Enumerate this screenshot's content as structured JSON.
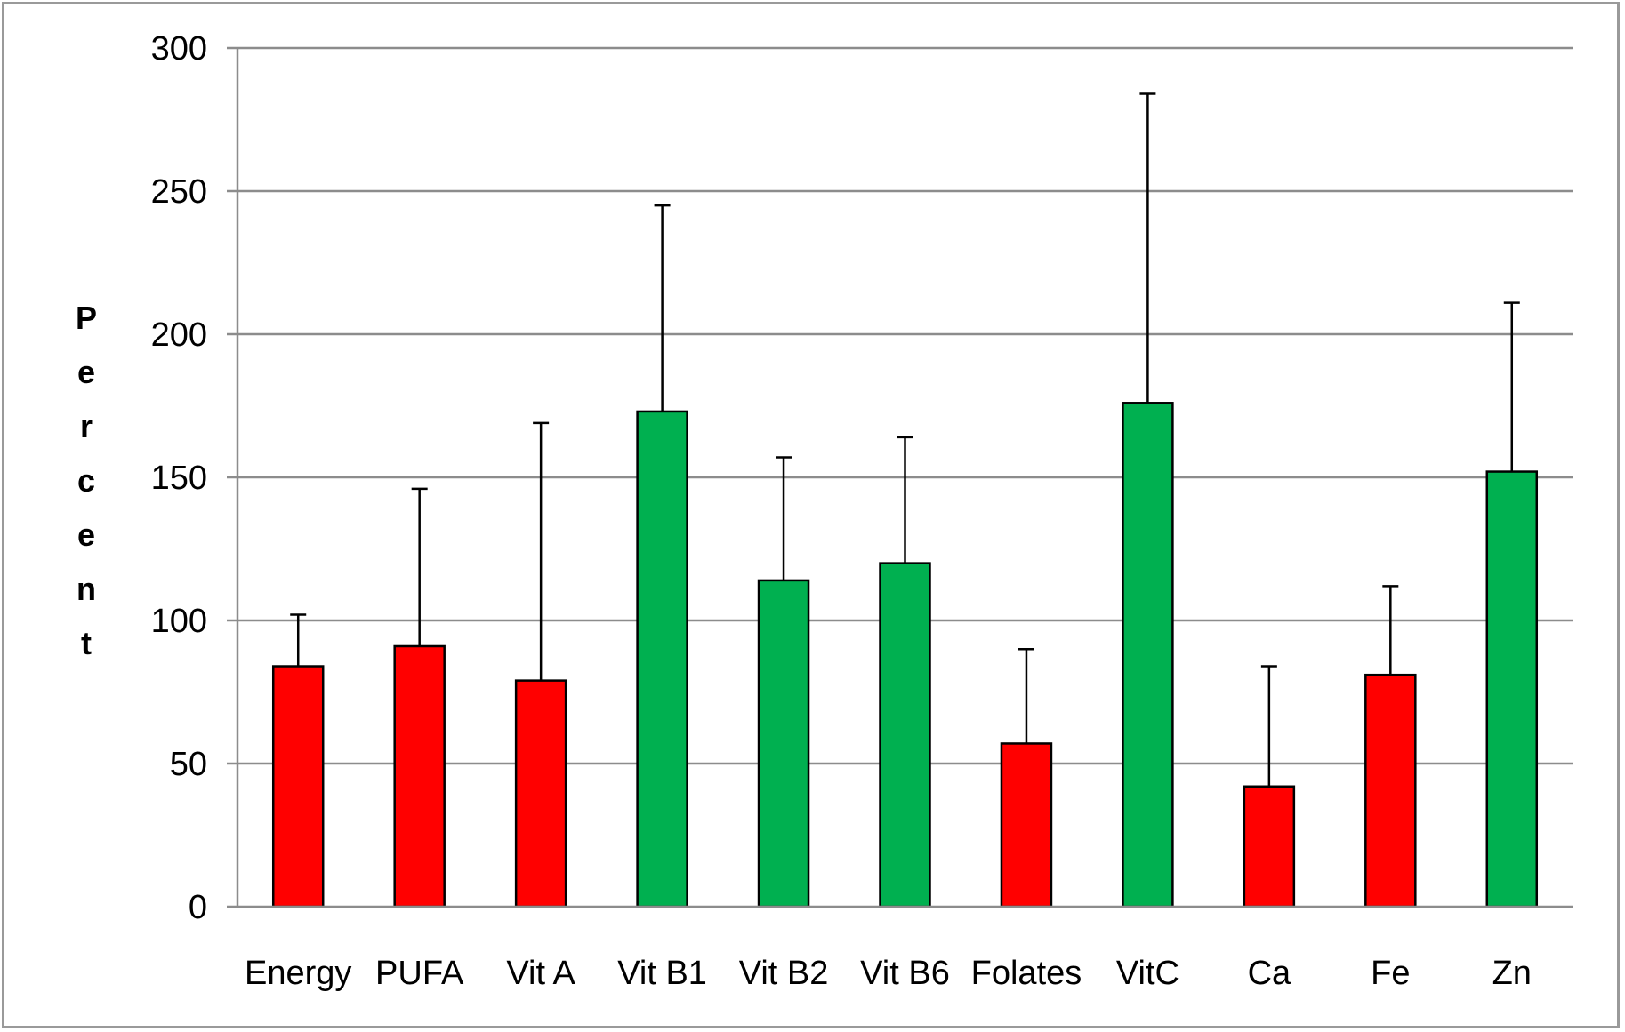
{
  "chart_data": {
    "type": "bar",
    "title": "",
    "xlabel": "",
    "ylabel": "Percent",
    "ylim": [
      0,
      300
    ],
    "yticks": [
      0,
      50,
      100,
      150,
      200,
      250,
      300
    ],
    "grid": true,
    "legend": "none",
    "categories": [
      "Energy",
      "PUFA",
      "Vit A",
      "Vit B1",
      "Vit B2",
      "Vit B6",
      "Folates",
      "VitC",
      "Ca",
      "Fe",
      "Zn"
    ],
    "values": [
      84,
      91,
      79,
      173,
      114,
      120,
      57,
      176,
      42,
      81,
      152
    ],
    "error_upper": [
      102,
      146,
      169,
      245,
      157,
      164,
      90,
      284,
      84,
      112,
      211
    ],
    "bar_colors": [
      "#ff0000",
      "#ff0000",
      "#ff0000",
      "#00b050",
      "#00b050",
      "#00b050",
      "#ff0000",
      "#00b050",
      "#ff0000",
      "#ff0000",
      "#00b050"
    ]
  }
}
